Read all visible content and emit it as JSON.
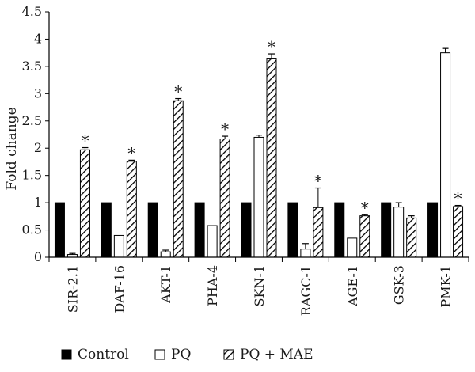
{
  "chart_data": {
    "type": "bar",
    "title": "",
    "xlabel": "",
    "ylabel": "Fold change",
    "ylim": [
      0,
      4.5
    ],
    "yticks": [
      "0",
      "0.5",
      "1",
      "1.5",
      "2",
      "2.5",
      "3",
      "3.5",
      "4",
      "4.5"
    ],
    "grid": false,
    "legend_position": "bottom",
    "categories": [
      "SIR-2.1",
      "DAF-16",
      "AKT-1",
      "PHA-4",
      "SKN-1",
      "RAGC-1",
      "AGE-1",
      "GSK-3",
      "PMK-1"
    ],
    "series": [
      {
        "name": "Control",
        "fill": "solid-black",
        "values": [
          1,
          1,
          1,
          1,
          1,
          1,
          1,
          1,
          1
        ],
        "errors": [
          0,
          0,
          0,
          0,
          0,
          0,
          0,
          0,
          0
        ]
      },
      {
        "name": "PQ",
        "fill": "white",
        "values": [
          0.05,
          0.4,
          0.1,
          0.58,
          2.2,
          0.15,
          0.35,
          0.92,
          3.75
        ],
        "errors": [
          0.02,
          0,
          0.03,
          0,
          0.04,
          0.1,
          0,
          0.08,
          0.08
        ]
      },
      {
        "name": "PQ + MAE",
        "fill": "hatched",
        "values": [
          1.97,
          1.76,
          2.87,
          2.17,
          3.65,
          0.91,
          0.76,
          0.72,
          0.93
        ],
        "errors": [
          0.04,
          0.02,
          0.04,
          0.05,
          0.08,
          0.36,
          0.02,
          0.04,
          0.02
        ]
      }
    ],
    "annotations": {
      "marker": "*",
      "significant": [
        true,
        true,
        true,
        true,
        true,
        true,
        true,
        false,
        true
      ]
    },
    "colors": {
      "control": "#000000",
      "pq": "#ffffff",
      "hatch": "#000000",
      "axis": "#000000"
    }
  }
}
